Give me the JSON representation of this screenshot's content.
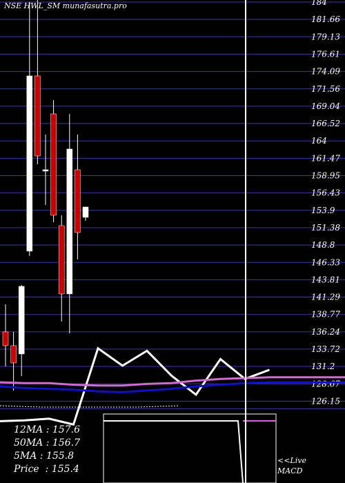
{
  "title": "NSE HWL_SM munafasutra.pro",
  "ma_panel": {
    "rows": [
      {
        "label": "12MA",
        "value": "157.6"
      },
      {
        "label": "50MA",
        "value": "156.7"
      },
      {
        "label": "5MA",
        "value": "155.8"
      },
      {
        "label": "Price ",
        "value": "155.4"
      }
    ]
  },
  "live_label": "<<Live",
  "macd_label": "MACD",
  "colors": {
    "background": "#000000",
    "grid": "#3a3aa8",
    "bull_candle": "#ffffff",
    "bear_candle": "#c80000",
    "momentum_line": "#ffffff",
    "ma_pink": "#d36ad3",
    "ma_blue": "#1010c8",
    "cursor": "#ffffff"
  },
  "chart_data": [
    {
      "type": "candlestick",
      "title": "NSE HWL_SM munafasutra.pro",
      "y_ticks": [
        "184",
        "181.66",
        "179.13",
        "176.61",
        "174.09",
        "171.56",
        "169.04",
        "166.52",
        "164",
        "161.47",
        "158.95",
        "156.43",
        "153.9",
        "151.38",
        "148.8",
        "146.33",
        "143.81",
        "141.29",
        "138.77",
        "136.24",
        "133.72",
        "131.2",
        "128.67",
        "126.15"
      ],
      "ylim": [
        126.15,
        184
      ],
      "candles": [
        {
          "open": 136.2,
          "high": 140.2,
          "low": 131.2,
          "close": 134.2,
          "dir": "bear"
        },
        {
          "open": 134.2,
          "high": 136.2,
          "low": 127.7,
          "close": 131.7,
          "dir": "bear"
        },
        {
          "open": 133.0,
          "high": 143.0,
          "low": 129.8,
          "close": 142.8,
          "dir": "bull"
        },
        {
          "open": 147.9,
          "high": 184.0,
          "low": 147.2,
          "close": 173.3,
          "dir": "bull"
        },
        {
          "open": 173.3,
          "high": 185.2,
          "low": 160.5,
          "close": 161.7,
          "dir": "bear"
        },
        {
          "open": 159.7,
          "high": 164.8,
          "low": 154.6,
          "close": 159.7,
          "dir": "bull"
        },
        {
          "open": 167.8,
          "high": 169.8,
          "low": 152.1,
          "close": 153.1,
          "dir": "bear"
        },
        {
          "open": 151.6,
          "high": 153.1,
          "low": 137.7,
          "close": 141.7,
          "dir": "bear"
        },
        {
          "open": 141.7,
          "high": 167.8,
          "low": 136.0,
          "close": 162.7,
          "dir": "bull"
        },
        {
          "open": 159.7,
          "high": 164.8,
          "low": 146.7,
          "close": 150.6,
          "dir": "bear"
        },
        {
          "open": 152.8,
          "high": 154.3,
          "low": 152.3,
          "close": 154.3,
          "dir": "bull"
        }
      ]
    },
    {
      "type": "line",
      "series": [
        {
          "values": [
            8,
            9,
            11,
            4,
            96,
            75,
            93,
            63,
            40,
            83,
            59,
            70
          ],
          "color": "white"
        },
        {
          "values": [
            55,
            54,
            54,
            52,
            51,
            51,
            53,
            54,
            57,
            59,
            60,
            61
          ],
          "color": "pink"
        },
        {
          "values": [
            50,
            48,
            47,
            46,
            44,
            43,
            45,
            47,
            50,
            52,
            54,
            55
          ],
          "color": "blue"
        }
      ],
      "ylim": [
        0,
        100
      ]
    },
    {
      "type": "line",
      "series": [
        {
          "values": [
            0.8,
            0.8,
            0.8,
            -1.0
          ],
          "color": "white"
        },
        {
          "values": [
            0.8,
            0.8,
            0.8,
            0.8
          ],
          "color": "pink"
        }
      ],
      "ylim": [
        -1,
        1
      ]
    }
  ]
}
